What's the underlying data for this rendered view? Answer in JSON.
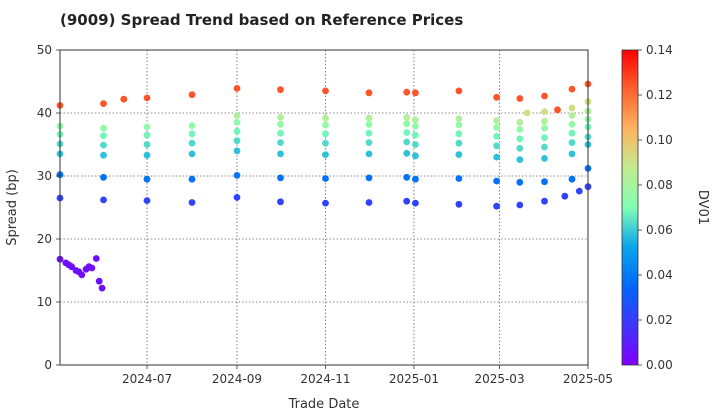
{
  "chart_data": {
    "type": "scatter",
    "title": "(9009)   Spread Trend based on Reference Prices",
    "xlabel": "Trade Date",
    "ylabel": "Spread (bp)",
    "colorbar_label": "DV01",
    "x_range": [
      "2024-05-02",
      "2025-05-01"
    ],
    "ylim": [
      0,
      50
    ],
    "yticks": [
      "0",
      "10",
      "20",
      "30",
      "40",
      "50"
    ],
    "xticks": [
      "2024-07",
      "2024-09",
      "2024-11",
      "2025-01",
      "2025-03",
      "2025-05"
    ],
    "colorbar_range": [
      0,
      0.14
    ],
    "colorbar_ticks": [
      "0.00",
      "0.02",
      "0.04",
      "0.06",
      "0.08",
      "0.10",
      "0.12",
      "0.14"
    ],
    "colormap": "rainbow",
    "grid": true,
    "series": [
      {
        "dv01": 0.005,
        "points": [
          [
            "2024-05-02",
            16.8
          ],
          [
            "2024-05-06",
            16.2
          ],
          [
            "2024-05-08",
            15.9
          ],
          [
            "2024-05-10",
            15.6
          ],
          [
            "2024-05-13",
            15.0
          ],
          [
            "2024-05-15",
            14.8
          ],
          [
            "2024-05-17",
            14.3
          ],
          [
            "2024-05-20",
            15.2
          ],
          [
            "2024-05-22",
            15.6
          ],
          [
            "2024-05-24",
            15.4
          ],
          [
            "2024-05-27",
            16.9
          ],
          [
            "2024-05-29",
            13.3
          ],
          [
            "2024-05-31",
            12.2
          ]
        ]
      },
      {
        "dv01": 0.022,
        "points": [
          [
            "2024-05-02",
            26.5
          ],
          [
            "2024-06-01",
            26.2
          ],
          [
            "2024-07-01",
            26.1
          ],
          [
            "2024-08-01",
            25.8
          ],
          [
            "2024-09-01",
            26.6
          ],
          [
            "2024-10-01",
            25.9
          ],
          [
            "2024-11-01",
            25.7
          ],
          [
            "2024-12-01",
            25.8
          ],
          [
            "2024-12-27",
            26.0
          ],
          [
            "2025-01-02",
            25.7
          ],
          [
            "2025-02-01",
            25.5
          ],
          [
            "2025-02-27",
            25.2
          ],
          [
            "2025-03-15",
            25.4
          ],
          [
            "2025-04-01",
            26.0
          ],
          [
            "2025-04-15",
            26.8
          ],
          [
            "2025-04-25",
            27.6
          ],
          [
            "2025-05-01",
            28.3
          ]
        ]
      },
      {
        "dv01": 0.038,
        "points": [
          [
            "2024-05-02",
            30.2
          ],
          [
            "2024-06-01",
            29.8
          ],
          [
            "2024-07-01",
            29.5
          ],
          [
            "2024-08-01",
            29.5
          ],
          [
            "2024-09-01",
            30.1
          ],
          [
            "2024-10-01",
            29.7
          ],
          [
            "2024-11-01",
            29.6
          ],
          [
            "2024-12-01",
            29.7
          ],
          [
            "2024-12-27",
            29.8
          ],
          [
            "2025-01-02",
            29.5
          ],
          [
            "2025-02-01",
            29.6
          ],
          [
            "2025-02-27",
            29.2
          ],
          [
            "2025-03-15",
            29.0
          ],
          [
            "2025-04-01",
            29.1
          ],
          [
            "2025-04-20",
            29.5
          ],
          [
            "2025-05-01",
            31.2
          ]
        ]
      },
      {
        "dv01": 0.058,
        "points": [
          [
            "2024-05-02",
            33.5
          ],
          [
            "2024-06-01",
            33.3
          ],
          [
            "2024-07-01",
            33.3
          ],
          [
            "2024-08-01",
            33.5
          ],
          [
            "2024-09-01",
            34.0
          ],
          [
            "2024-10-01",
            33.5
          ],
          [
            "2024-11-01",
            33.4
          ],
          [
            "2024-12-01",
            33.5
          ],
          [
            "2024-12-27",
            33.6
          ],
          [
            "2025-01-02",
            33.2
          ],
          [
            "2025-02-01",
            33.4
          ],
          [
            "2025-02-27",
            33.0
          ],
          [
            "2025-03-15",
            32.6
          ],
          [
            "2025-04-01",
            32.8
          ],
          [
            "2025-04-20",
            33.5
          ],
          [
            "2025-05-01",
            35.0
          ]
        ]
      },
      {
        "dv01": 0.063,
        "points": [
          [
            "2024-05-02",
            35.1
          ],
          [
            "2024-06-01",
            34.9
          ],
          [
            "2024-07-01",
            35.0
          ],
          [
            "2024-08-01",
            35.2
          ],
          [
            "2024-09-01",
            35.6
          ],
          [
            "2024-10-01",
            35.3
          ],
          [
            "2024-11-01",
            35.2
          ],
          [
            "2024-12-01",
            35.3
          ],
          [
            "2024-12-27",
            35.4
          ],
          [
            "2025-01-02",
            35.0
          ],
          [
            "2025-02-01",
            35.2
          ],
          [
            "2025-02-27",
            34.8
          ],
          [
            "2025-03-15",
            34.4
          ],
          [
            "2025-04-01",
            34.6
          ],
          [
            "2025-04-20",
            35.3
          ],
          [
            "2025-05-01",
            36.2
          ]
        ]
      },
      {
        "dv01": 0.068,
        "points": [
          [
            "2024-05-02",
            36.6
          ],
          [
            "2024-06-01",
            36.4
          ],
          [
            "2024-07-01",
            36.5
          ],
          [
            "2024-08-01",
            36.7
          ],
          [
            "2024-09-01",
            37.1
          ],
          [
            "2024-10-01",
            36.8
          ],
          [
            "2024-11-01",
            36.7
          ],
          [
            "2024-12-01",
            36.8
          ],
          [
            "2024-12-27",
            36.9
          ],
          [
            "2025-01-02",
            36.5
          ],
          [
            "2025-02-01",
            36.7
          ],
          [
            "2025-02-27",
            36.3
          ],
          [
            "2025-03-15",
            35.9
          ],
          [
            "2025-04-01",
            36.1
          ],
          [
            "2025-04-20",
            36.8
          ],
          [
            "2025-05-01",
            37.8
          ]
        ]
      },
      {
        "dv01": 0.075,
        "points": [
          [
            "2024-05-02",
            37.9
          ],
          [
            "2024-06-01",
            37.6
          ],
          [
            "2024-07-01",
            37.8
          ],
          [
            "2024-08-01",
            38.0
          ],
          [
            "2024-09-01",
            38.5
          ],
          [
            "2024-10-01",
            38.2
          ],
          [
            "2024-11-01",
            38.1
          ],
          [
            "2024-12-01",
            38.2
          ],
          [
            "2024-12-27",
            38.3
          ],
          [
            "2025-01-02",
            37.9
          ],
          [
            "2025-02-01",
            38.1
          ],
          [
            "2025-02-27",
            37.7
          ],
          [
            "2025-03-15",
            37.4
          ],
          [
            "2025-04-01",
            37.6
          ],
          [
            "2025-04-20",
            38.2
          ],
          [
            "2025-05-01",
            39.0
          ]
        ]
      },
      {
        "dv01": 0.083,
        "points": [
          [
            "2024-09-01",
            39.6
          ],
          [
            "2024-10-01",
            39.3
          ],
          [
            "2024-11-01",
            39.2
          ],
          [
            "2024-12-01",
            39.2
          ],
          [
            "2024-12-27",
            39.3
          ],
          [
            "2025-01-02",
            38.9
          ],
          [
            "2025-02-01",
            39.1
          ],
          [
            "2025-02-27",
            38.8
          ],
          [
            "2025-03-15",
            38.5
          ],
          [
            "2025-04-01",
            38.7
          ],
          [
            "2025-04-20",
            39.6
          ],
          [
            "2025-05-01",
            40.3
          ]
        ]
      },
      {
        "dv01": 0.092,
        "points": [
          [
            "2025-03-20",
            40.0
          ],
          [
            "2025-04-01",
            40.2
          ],
          [
            "2025-04-20",
            40.8
          ],
          [
            "2025-05-01",
            41.8
          ]
        ]
      },
      {
        "dv01": 0.125,
        "points": [
          [
            "2024-05-02",
            41.2
          ],
          [
            "2024-06-01",
            41.5
          ],
          [
            "2024-06-15",
            42.2
          ],
          [
            "2024-07-01",
            42.4
          ],
          [
            "2024-08-01",
            42.9
          ],
          [
            "2024-09-01",
            43.9
          ],
          [
            "2024-10-01",
            43.7
          ],
          [
            "2024-11-01",
            43.5
          ],
          [
            "2024-12-01",
            43.2
          ],
          [
            "2024-12-27",
            43.3
          ],
          [
            "2025-01-02",
            43.2
          ],
          [
            "2025-02-01",
            43.5
          ],
          [
            "2025-02-27",
            42.5
          ],
          [
            "2025-03-15",
            42.3
          ],
          [
            "2025-04-01",
            42.7
          ],
          [
            "2025-04-10",
            40.5
          ],
          [
            "2025-04-20",
            43.8
          ],
          [
            "2025-05-01",
            44.6
          ]
        ]
      }
    ]
  }
}
